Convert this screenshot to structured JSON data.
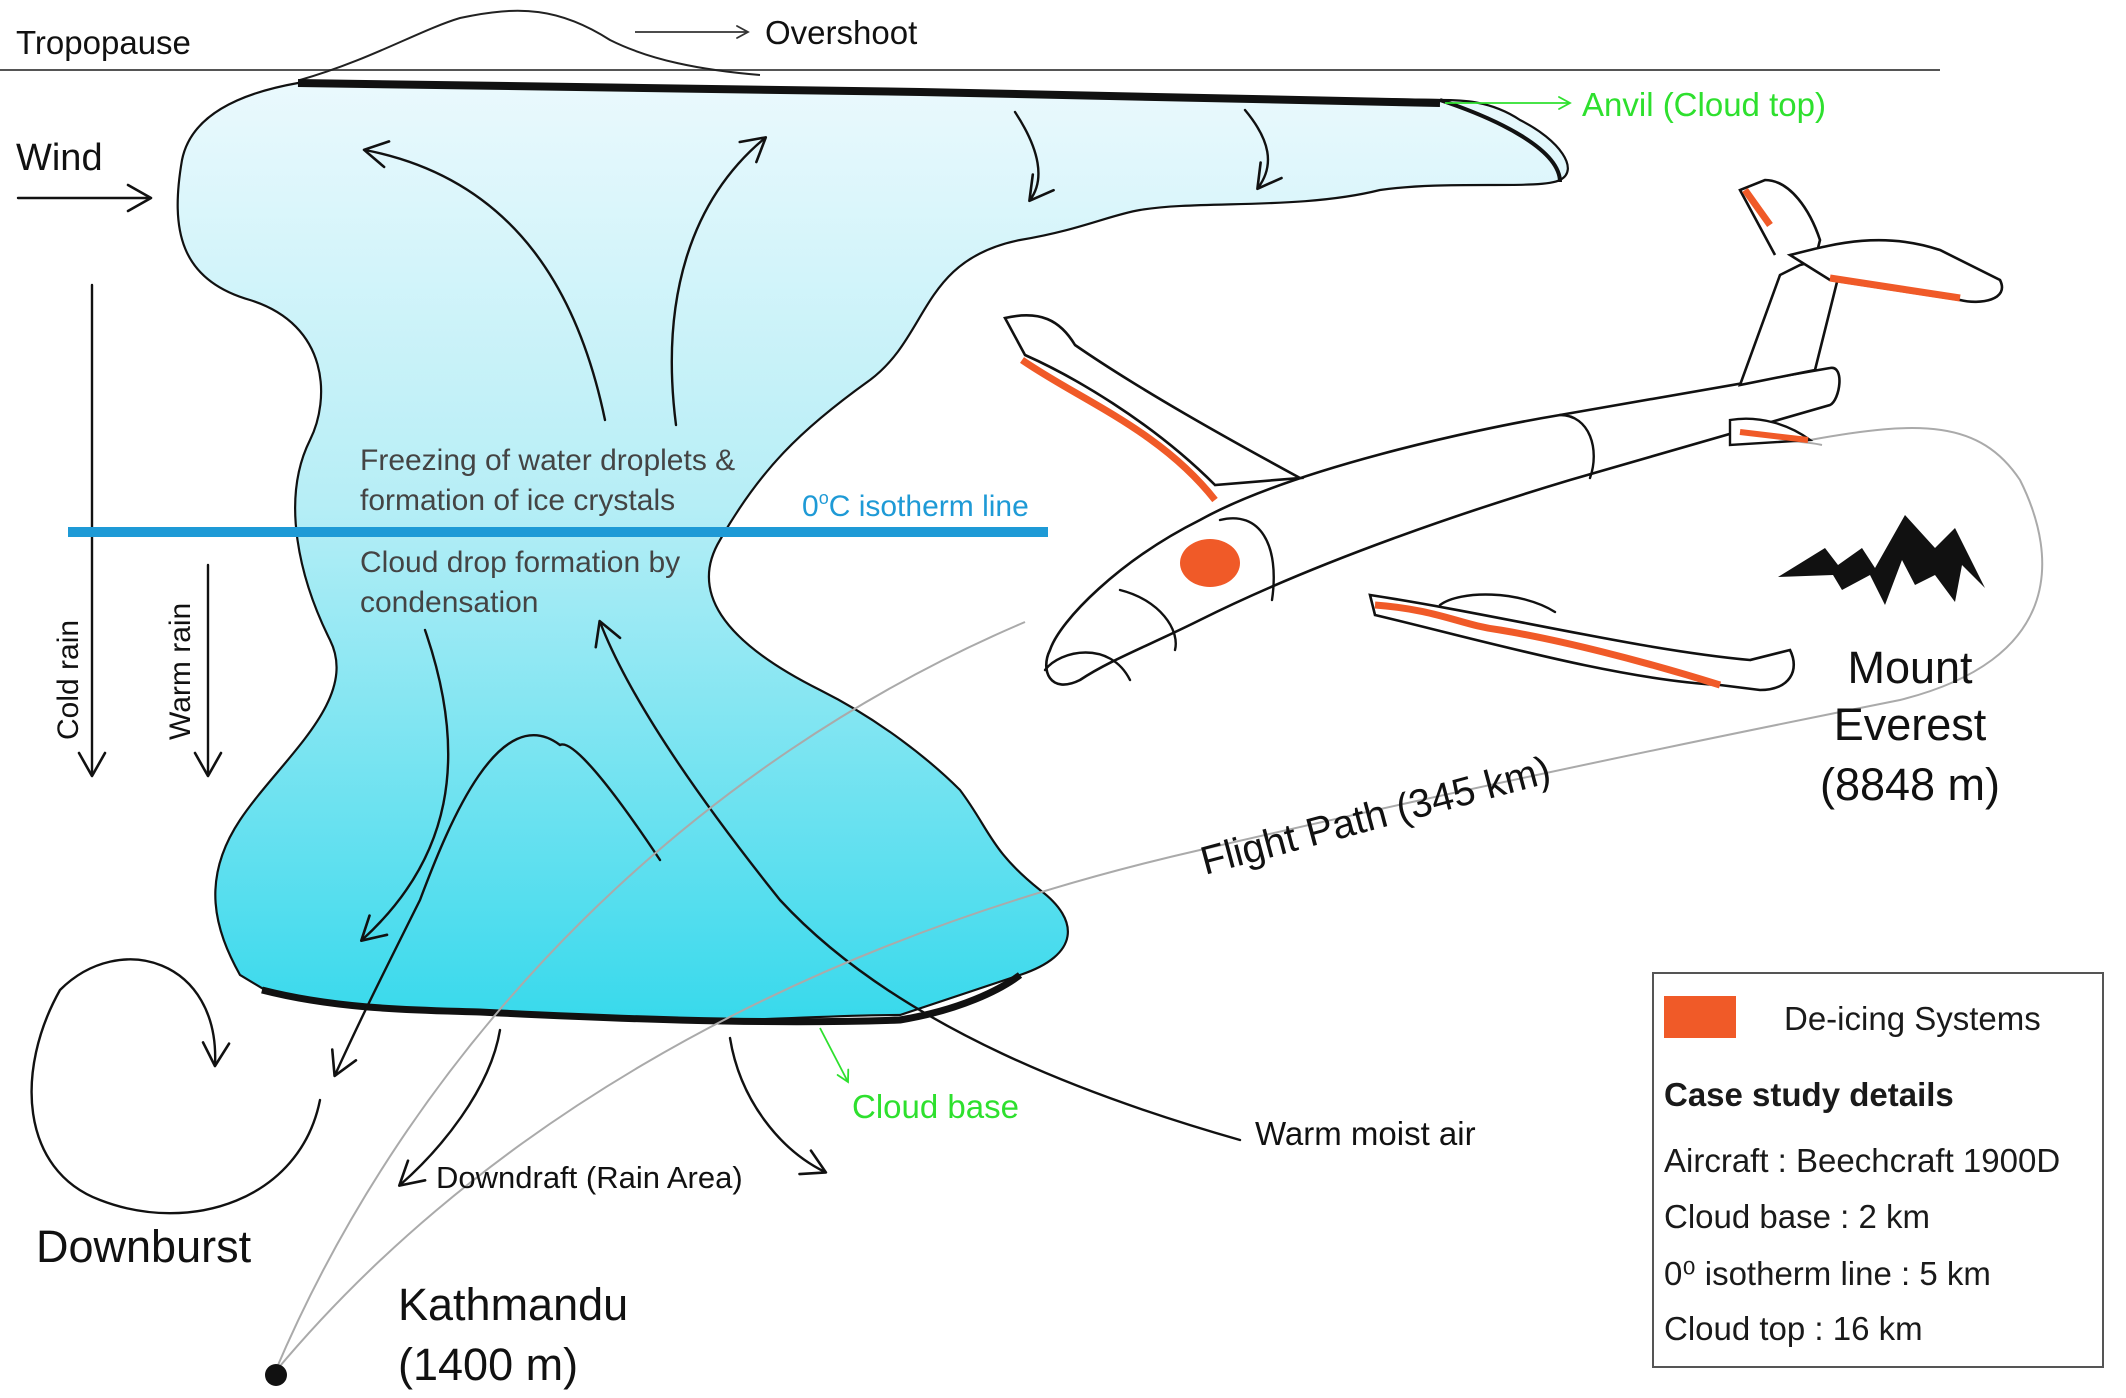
{
  "labels": {
    "tropopause": "Tropopause",
    "overshoot": "Overshoot",
    "anvil": "Anvil (Cloud top)",
    "wind": "Wind",
    "freezing_line1": "Freezing of water droplets &",
    "freezing_line2": "formation of ice crystals",
    "isotherm_prefix": "0",
    "isotherm_sup": "o",
    "isotherm_suffix": "C isotherm line",
    "condensation_line1": "Cloud drop formation by",
    "condensation_line2": "condensation",
    "cold_rain": "Cold rain",
    "warm_rain": "Warm rain",
    "cloud_base": "Cloud base",
    "warm_moist_air": "Warm moist air",
    "downdraft": "Downdraft (Rain Area)",
    "downburst": "Downburst",
    "kathmandu_name": "Kathmandu",
    "kathmandu_alt": "(1400 m)",
    "flight_path": "Flight Path (345 km)",
    "everest_line1": "Mount",
    "everest_line2": "Everest",
    "everest_alt": "(8848 m)"
  },
  "legend": {
    "deicing": "De-icing Systems",
    "case_title": "Case study details",
    "details": [
      "Aircraft : Beechcraft 1900D",
      "Cloud base : 2 km",
      "0⁰ isotherm line : 5 km",
      "Cloud top : 16 km"
    ]
  },
  "colors": {
    "deicing": "#f05a28",
    "isotherm": "#1e9ad6",
    "green_label": "#2ee02e",
    "cloud_top": "#eaf9fd",
    "cloud_bottom": "#38d9ec"
  }
}
